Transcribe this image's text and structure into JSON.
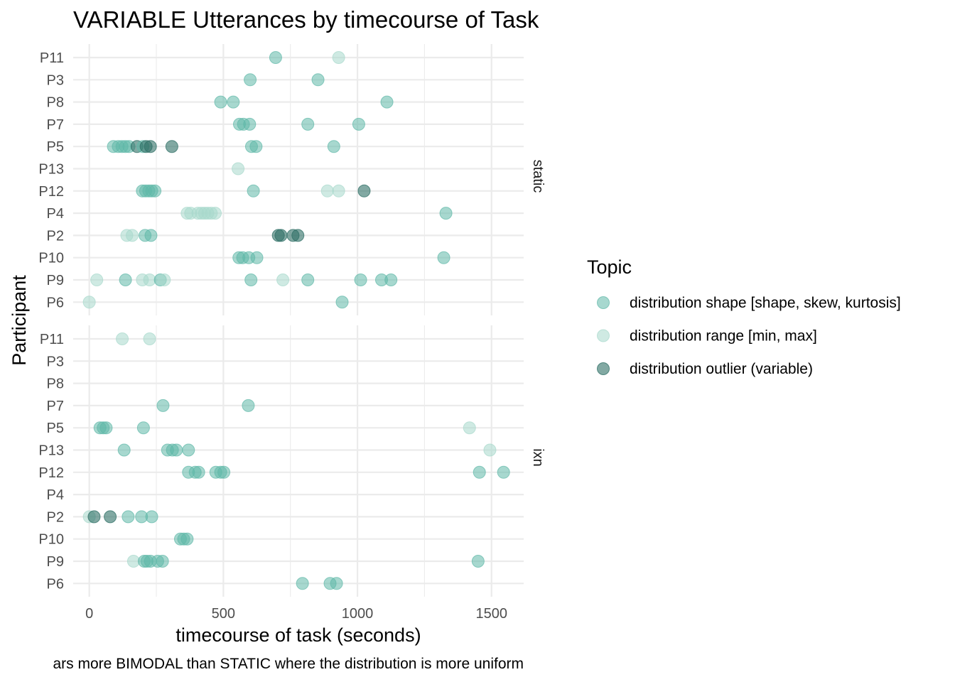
{
  "chart_data": {
    "type": "scatter",
    "title": "VARIABLE Utterances by timecourse of Task",
    "xlabel": "timecourse of task (seconds)",
    "ylabel": "Participant",
    "caption": "ars more BIMODAL than STATIC where the distribution is more uniform",
    "xlim": [
      -60,
      1620
    ],
    "x_ticks": [
      0,
      500,
      1000,
      1500
    ],
    "x_minor_ticks": [
      250,
      750,
      1250
    ],
    "grid": true,
    "participants": [
      "P11",
      "P3",
      "P8",
      "P7",
      "P5",
      "P13",
      "P12",
      "P4",
      "P2",
      "P10",
      "P9",
      "P6"
    ],
    "legend": {
      "title": "Topic",
      "position": "right",
      "entries": [
        {
          "key": "shape",
          "label": "distribution shape [shape, skew, kurtosis]",
          "color": "#5fb8a8",
          "opacity": 0.55
        },
        {
          "key": "range",
          "label": "distribution range [min, max]",
          "color": "#a8d8cc",
          "opacity": 0.55
        },
        {
          "key": "outlier",
          "label": "distribution outlier (variable)",
          "color": "#2f6f66",
          "opacity": 0.6
        }
      ]
    },
    "panels": [
      {
        "strip_label": "static",
        "points": [
          {
            "p": "P11",
            "x": 695,
            "topic": "shape"
          },
          {
            "p": "P11",
            "x": 930,
            "topic": "range"
          },
          {
            "p": "P3",
            "x": 600,
            "topic": "shape"
          },
          {
            "p": "P3",
            "x": 853,
            "topic": "shape"
          },
          {
            "p": "P8",
            "x": 490,
            "topic": "shape"
          },
          {
            "p": "P8",
            "x": 537,
            "topic": "shape"
          },
          {
            "p": "P8",
            "x": 1110,
            "topic": "shape"
          },
          {
            "p": "P7",
            "x": 560,
            "topic": "shape"
          },
          {
            "p": "P7",
            "x": 575,
            "topic": "shape"
          },
          {
            "p": "P7",
            "x": 598,
            "topic": "shape"
          },
          {
            "p": "P7",
            "x": 815,
            "topic": "shape"
          },
          {
            "p": "P7",
            "x": 1005,
            "topic": "shape"
          },
          {
            "p": "P5",
            "x": 90,
            "topic": "shape"
          },
          {
            "p": "P5",
            "x": 108,
            "topic": "shape"
          },
          {
            "p": "P5",
            "x": 122,
            "topic": "shape"
          },
          {
            "p": "P5",
            "x": 135,
            "topic": "shape"
          },
          {
            "p": "P5",
            "x": 148,
            "topic": "shape"
          },
          {
            "p": "P5",
            "x": 178,
            "topic": "outlier"
          },
          {
            "p": "P5",
            "x": 200,
            "topic": "shape"
          },
          {
            "p": "P5",
            "x": 212,
            "topic": "outlier"
          },
          {
            "p": "P5",
            "x": 228,
            "topic": "outlier"
          },
          {
            "p": "P5",
            "x": 308,
            "topic": "outlier"
          },
          {
            "p": "P5",
            "x": 605,
            "topic": "shape"
          },
          {
            "p": "P5",
            "x": 622,
            "topic": "shape"
          },
          {
            "p": "P5",
            "x": 912,
            "topic": "shape"
          },
          {
            "p": "P13",
            "x": 555,
            "topic": "range"
          },
          {
            "p": "P12",
            "x": 198,
            "topic": "shape"
          },
          {
            "p": "P12",
            "x": 210,
            "topic": "shape"
          },
          {
            "p": "P12",
            "x": 222,
            "topic": "shape"
          },
          {
            "p": "P12",
            "x": 233,
            "topic": "shape"
          },
          {
            "p": "P12",
            "x": 245,
            "topic": "shape"
          },
          {
            "p": "P12",
            "x": 612,
            "topic": "shape"
          },
          {
            "p": "P12",
            "x": 888,
            "topic": "range"
          },
          {
            "p": "P12",
            "x": 930,
            "topic": "range"
          },
          {
            "p": "P12",
            "x": 1025,
            "topic": "outlier"
          },
          {
            "p": "P4",
            "x": 365,
            "topic": "range"
          },
          {
            "p": "P4",
            "x": 378,
            "topic": "range"
          },
          {
            "p": "P4",
            "x": 405,
            "topic": "range"
          },
          {
            "p": "P4",
            "x": 418,
            "topic": "range"
          },
          {
            "p": "P4",
            "x": 430,
            "topic": "range"
          },
          {
            "p": "P4",
            "x": 442,
            "topic": "range"
          },
          {
            "p": "P4",
            "x": 455,
            "topic": "range"
          },
          {
            "p": "P4",
            "x": 470,
            "topic": "range"
          },
          {
            "p": "P4",
            "x": 1330,
            "topic": "shape"
          },
          {
            "p": "P2",
            "x": 140,
            "topic": "range"
          },
          {
            "p": "P2",
            "x": 160,
            "topic": "range"
          },
          {
            "p": "P2",
            "x": 208,
            "topic": "shape"
          },
          {
            "p": "P2",
            "x": 230,
            "topic": "shape"
          },
          {
            "p": "P2",
            "x": 705,
            "topic": "outlier"
          },
          {
            "p": "P2",
            "x": 715,
            "topic": "outlier"
          },
          {
            "p": "P2",
            "x": 760,
            "topic": "outlier"
          },
          {
            "p": "P2",
            "x": 778,
            "topic": "outlier"
          },
          {
            "p": "P10",
            "x": 558,
            "topic": "shape"
          },
          {
            "p": "P10",
            "x": 572,
            "topic": "shape"
          },
          {
            "p": "P10",
            "x": 595,
            "topic": "shape"
          },
          {
            "p": "P10",
            "x": 625,
            "topic": "shape"
          },
          {
            "p": "P10",
            "x": 1322,
            "topic": "shape"
          },
          {
            "p": "P9",
            "x": 28,
            "topic": "range"
          },
          {
            "p": "P9",
            "x": 135,
            "topic": "shape"
          },
          {
            "p": "P9",
            "x": 198,
            "topic": "range"
          },
          {
            "p": "P9",
            "x": 225,
            "topic": "range"
          },
          {
            "p": "P9",
            "x": 265,
            "topic": "shape"
          },
          {
            "p": "P9",
            "x": 280,
            "topic": "range"
          },
          {
            "p": "P9",
            "x": 603,
            "topic": "shape"
          },
          {
            "p": "P9",
            "x": 722,
            "topic": "range"
          },
          {
            "p": "P9",
            "x": 815,
            "topic": "shape"
          },
          {
            "p": "P9",
            "x": 1012,
            "topic": "shape"
          },
          {
            "p": "P9",
            "x": 1090,
            "topic": "shape"
          },
          {
            "p": "P9",
            "x": 1125,
            "topic": "shape"
          },
          {
            "p": "P6",
            "x": 0,
            "topic": "range"
          },
          {
            "p": "P6",
            "x": 943,
            "topic": "shape"
          }
        ]
      },
      {
        "strip_label": "ixn",
        "points": [
          {
            "p": "P11",
            "x": 123,
            "topic": "range"
          },
          {
            "p": "P11",
            "x": 225,
            "topic": "range"
          },
          {
            "p": "P7",
            "x": 275,
            "topic": "shape"
          },
          {
            "p": "P7",
            "x": 593,
            "topic": "shape"
          },
          {
            "p": "P5",
            "x": 40,
            "topic": "shape"
          },
          {
            "p": "P5",
            "x": 52,
            "topic": "shape"
          },
          {
            "p": "P5",
            "x": 63,
            "topic": "shape"
          },
          {
            "p": "P5",
            "x": 202,
            "topic": "shape"
          },
          {
            "p": "P5",
            "x": 1418,
            "topic": "range"
          },
          {
            "p": "P13",
            "x": 130,
            "topic": "shape"
          },
          {
            "p": "P13",
            "x": 292,
            "topic": "shape"
          },
          {
            "p": "P13",
            "x": 310,
            "topic": "shape"
          },
          {
            "p": "P13",
            "x": 325,
            "topic": "shape"
          },
          {
            "p": "P13",
            "x": 370,
            "topic": "shape"
          },
          {
            "p": "P13",
            "x": 1494,
            "topic": "range"
          },
          {
            "p": "P12",
            "x": 370,
            "topic": "shape"
          },
          {
            "p": "P12",
            "x": 395,
            "topic": "shape"
          },
          {
            "p": "P12",
            "x": 408,
            "topic": "shape"
          },
          {
            "p": "P12",
            "x": 472,
            "topic": "shape"
          },
          {
            "p": "P12",
            "x": 490,
            "topic": "shape"
          },
          {
            "p": "P12",
            "x": 502,
            "topic": "shape"
          },
          {
            "p": "P12",
            "x": 1455,
            "topic": "shape"
          },
          {
            "p": "P12",
            "x": 1545,
            "topic": "shape"
          },
          {
            "p": "P2",
            "x": 0,
            "topic": "range"
          },
          {
            "p": "P2",
            "x": 18,
            "topic": "outlier"
          },
          {
            "p": "P2",
            "x": 78,
            "topic": "outlier"
          },
          {
            "p": "P2",
            "x": 145,
            "topic": "shape"
          },
          {
            "p": "P2",
            "x": 195,
            "topic": "shape"
          },
          {
            "p": "P2",
            "x": 233,
            "topic": "shape"
          },
          {
            "p": "P10",
            "x": 340,
            "topic": "shape"
          },
          {
            "p": "P10",
            "x": 352,
            "topic": "shape"
          },
          {
            "p": "P10",
            "x": 365,
            "topic": "shape"
          },
          {
            "p": "P9",
            "x": 165,
            "topic": "range"
          },
          {
            "p": "P9",
            "x": 205,
            "topic": "shape"
          },
          {
            "p": "P9",
            "x": 215,
            "topic": "shape"
          },
          {
            "p": "P9",
            "x": 228,
            "topic": "shape"
          },
          {
            "p": "P9",
            "x": 255,
            "topic": "shape"
          },
          {
            "p": "P9",
            "x": 273,
            "topic": "shape"
          },
          {
            "p": "P9",
            "x": 1450,
            "topic": "shape"
          },
          {
            "p": "P6",
            "x": 795,
            "topic": "shape"
          },
          {
            "p": "P6",
            "x": 898,
            "topic": "shape"
          },
          {
            "p": "P6",
            "x": 922,
            "topic": "shape"
          }
        ]
      }
    ]
  }
}
